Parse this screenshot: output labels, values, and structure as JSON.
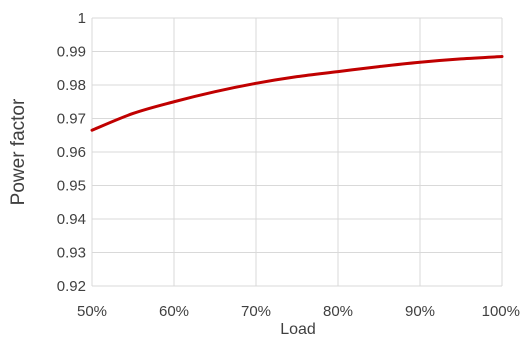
{
  "chart_data": {
    "type": "line",
    "title": "",
    "xlabel": "Load",
    "ylabel": "Power factor",
    "x": [
      0.5,
      0.55,
      0.6,
      0.65,
      0.7,
      0.75,
      0.8,
      0.85,
      0.9,
      0.95,
      1.0
    ],
    "x_tick_values": [
      0.5,
      0.6,
      0.7,
      0.8,
      0.9,
      1.0
    ],
    "x_tick_labels": [
      "50%",
      "60%",
      "70%",
      "80%",
      "90%",
      "100%"
    ],
    "xlim": [
      0.5,
      1.0
    ],
    "y_tick_values": [
      0.92,
      0.93,
      0.94,
      0.95,
      0.96,
      0.97,
      0.98,
      0.99,
      1.0
    ],
    "y_tick_labels": [
      "0.92",
      "0.93",
      "0.94",
      "0.95",
      "0.96",
      "0.97",
      "0.98",
      "0.99",
      "1"
    ],
    "ylim": [
      0.92,
      1.0
    ],
    "grid": true,
    "legend": "none",
    "series": [
      {
        "values": [
          0.9665,
          0.9715,
          0.975,
          0.978,
          0.9805,
          0.9825,
          0.984,
          0.9855,
          0.9868,
          0.9878,
          0.9885
        ],
        "color": "#c00000"
      }
    ]
  }
}
